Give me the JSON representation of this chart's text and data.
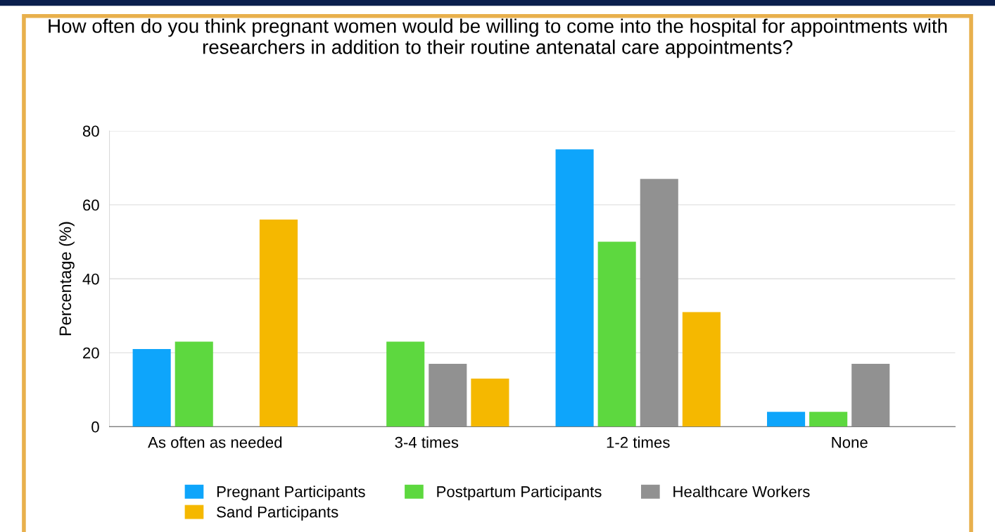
{
  "chart_data": {
    "type": "bar",
    "title": "How often do you think pregnant women would be willing to come into the hospital for appointments with researchers in addition to their routine antenatal care appointments?",
    "ylabel": "Percentage (%)",
    "categories": [
      "As often as needed",
      "3-4 times",
      "1-2 times",
      "None"
    ],
    "series": [
      {
        "name": "Pregnant Participants",
        "color": "#0ea5fb",
        "values": [
          21,
          0,
          75,
          4
        ]
      },
      {
        "name": "Postpartum Participants",
        "color": "#5dd83f",
        "values": [
          23,
          23,
          50,
          4
        ]
      },
      {
        "name": "Healthcare Workers",
        "color": "#919191",
        "values": [
          0,
          17,
          67,
          17
        ]
      },
      {
        "name": "Sand Participants",
        "color": "#f5b800",
        "values": [
          56,
          13,
          31,
          0
        ]
      }
    ],
    "ylim": [
      0,
      80
    ],
    "yticks": [
      0,
      20,
      40,
      60,
      80
    ],
    "grid": "y",
    "legend": "bottom"
  }
}
